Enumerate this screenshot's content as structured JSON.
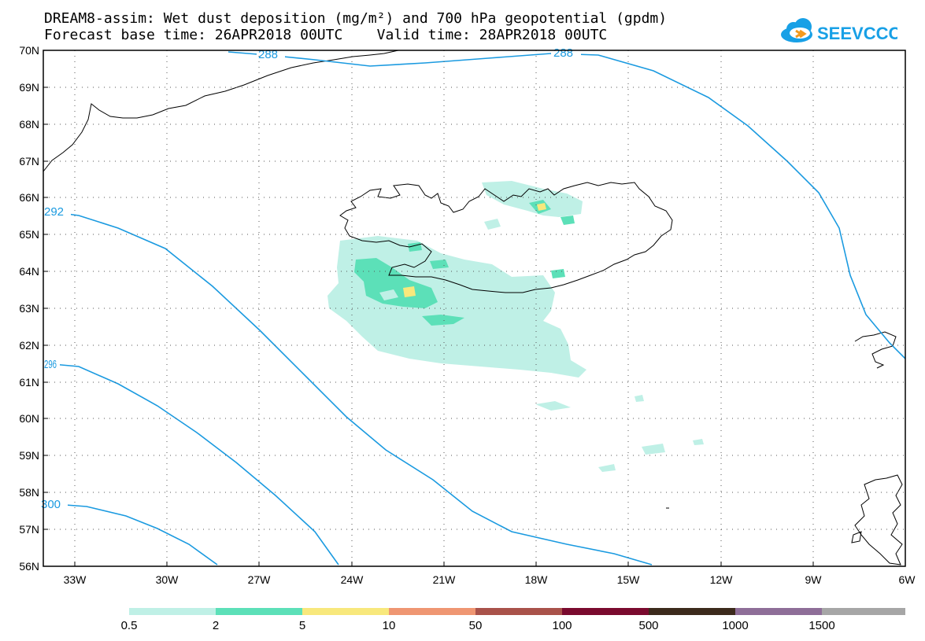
{
  "title_line1": "DREAM8-assim: Wet dust deposition (mg/m²) and 700 hPa geopotential (gpdm)",
  "title_line2": "Forecast base time: 26APR2018 00UTC    Valid time: 28APR2018 00UTC",
  "logo_text": "SEEVCCC",
  "colors": {
    "contour": "#1a9ae0",
    "coast": "#000000",
    "grid": "#555555",
    "logo_blue": "#18a0e6",
    "logo_orange": "#f39a1e"
  },
  "map": {
    "lon_range": [
      -34,
      -6
    ],
    "lat_range": [
      56,
      70
    ],
    "lat_labels": [
      "70N",
      "69N",
      "68N",
      "67N",
      "66N",
      "65N",
      "64N",
      "63N",
      "62N",
      "61N",
      "60N",
      "59N",
      "58N",
      "57N",
      "56N"
    ],
    "lon_labels": [
      "33W",
      "30W",
      "27W",
      "24W",
      "21W",
      "18W",
      "15W",
      "12W",
      "9W",
      "6W"
    ],
    "contour_labels": [
      "288",
      "288",
      "292",
      "296",
      "300"
    ]
  },
  "legend": {
    "labels": [
      "0.5",
      "2",
      "5",
      "10",
      "50",
      "100",
      "500",
      "1000",
      "1500"
    ],
    "colors": [
      "#bff0e6",
      "#5ce0b8",
      "#f8e87c",
      "#ef9672",
      "#a9524a",
      "#7a0a2e",
      "#3c2a1c",
      "#8e6e98",
      "#a6a6a6"
    ]
  }
}
